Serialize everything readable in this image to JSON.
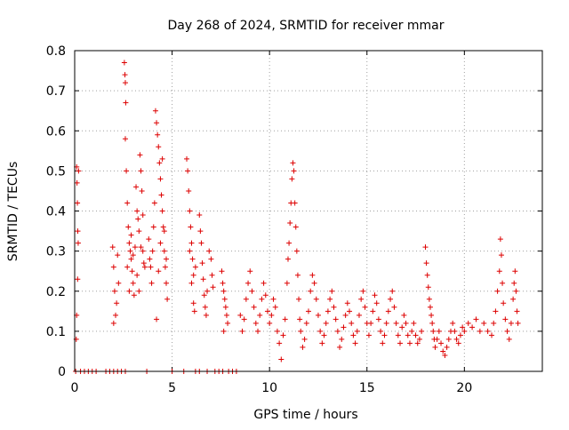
{
  "chart_data": {
    "type": "scatter",
    "title": "Day 268 of 2024, SRMTID for receiver mmar",
    "xlabel": "GPS time / hours",
    "ylabel": "SRMTID / TECUs",
    "xlim": [
      0,
      24
    ],
    "ylim": [
      0,
      0.8
    ],
    "xticks": [
      0,
      5,
      10,
      15,
      20
    ],
    "xtick_labels": [
      "0",
      "5",
      "10",
      "15",
      "20"
    ],
    "yticks": [
      0,
      0.1,
      0.2,
      0.3,
      0.4,
      0.5,
      0.6,
      0.7,
      0.8
    ],
    "ytick_labels": [
      "0",
      "0.1",
      "0.2",
      "0.3",
      "0.4",
      "0.5",
      "0.6",
      "0.7",
      "0.8"
    ],
    "grid": true,
    "marker": "plus",
    "color": "#dd0000",
    "series": [
      {
        "name": "SRMTID",
        "points": [
          [
            0.1,
            0.51
          ],
          [
            0.12,
            0.47
          ],
          [
            0.14,
            0.42
          ],
          [
            0.16,
            0.35
          ],
          [
            0.1,
            0.14
          ],
          [
            0.15,
            0.23
          ],
          [
            0.08,
            0.08
          ],
          [
            0.18,
            0.32
          ],
          [
            0.2,
            0.5
          ],
          [
            1.95,
            0.31
          ],
          [
            2.0,
            0.26
          ],
          [
            2.05,
            0.2
          ],
          [
            2.1,
            0.14
          ],
          [
            2.15,
            0.17
          ],
          [
            2.2,
            0.29
          ],
          [
            2.25,
            0.22
          ],
          [
            2.0,
            0.12
          ],
          [
            2.55,
            0.77
          ],
          [
            2.58,
            0.74
          ],
          [
            2.6,
            0.72
          ],
          [
            2.62,
            0.67
          ],
          [
            2.6,
            0.58
          ],
          [
            2.65,
            0.5
          ],
          [
            2.7,
            0.42
          ],
          [
            2.75,
            0.36
          ],
          [
            2.8,
            0.32
          ],
          [
            2.85,
            0.3
          ],
          [
            2.9,
            0.28
          ],
          [
            2.95,
            0.25
          ],
          [
            3.0,
            0.22
          ],
          [
            3.05,
            0.19
          ],
          [
            2.7,
            0.26
          ],
          [
            2.8,
            0.2
          ],
          [
            2.9,
            0.34
          ],
          [
            3.0,
            0.29
          ],
          [
            3.1,
            0.31
          ],
          [
            3.15,
            0.46
          ],
          [
            3.2,
            0.4
          ],
          [
            3.25,
            0.38
          ],
          [
            3.3,
            0.35
          ],
          [
            3.35,
            0.54
          ],
          [
            3.4,
            0.5
          ],
          [
            3.45,
            0.45
          ],
          [
            3.5,
            0.3
          ],
          [
            3.55,
            0.27
          ],
          [
            3.2,
            0.24
          ],
          [
            3.3,
            0.2
          ],
          [
            3.4,
            0.31
          ],
          [
            3.5,
            0.39
          ],
          [
            3.6,
            0.26
          ],
          [
            3.8,
            0.33
          ],
          [
            3.85,
            0.28
          ],
          [
            3.9,
            0.26
          ],
          [
            3.95,
            0.22
          ],
          [
            4.0,
            0.3
          ],
          [
            4.05,
            0.36
          ],
          [
            4.1,
            0.42
          ],
          [
            4.15,
            0.65
          ],
          [
            4.2,
            0.62
          ],
          [
            4.25,
            0.59
          ],
          [
            4.3,
            0.56
          ],
          [
            4.35,
            0.52
          ],
          [
            4.4,
            0.48
          ],
          [
            4.45,
            0.44
          ],
          [
            4.5,
            0.4
          ],
          [
            4.55,
            0.36
          ],
          [
            4.6,
            0.3
          ],
          [
            4.65,
            0.26
          ],
          [
            4.7,
            0.22
          ],
          [
            4.75,
            0.18
          ],
          [
            4.2,
            0.13
          ],
          [
            4.3,
            0.25
          ],
          [
            4.4,
            0.32
          ],
          [
            4.5,
            0.53
          ],
          [
            4.6,
            0.35
          ],
          [
            4.7,
            0.28
          ],
          [
            5.75,
            0.53
          ],
          [
            5.8,
            0.5
          ],
          [
            5.85,
            0.45
          ],
          [
            5.9,
            0.4
          ],
          [
            5.95,
            0.36
          ],
          [
            6.0,
            0.32
          ],
          [
            6.05,
            0.28
          ],
          [
            6.1,
            0.24
          ],
          [
            5.9,
            0.3
          ],
          [
            6.0,
            0.22
          ],
          [
            6.1,
            0.17
          ],
          [
            6.15,
            0.15
          ],
          [
            6.2,
            0.26
          ],
          [
            6.4,
            0.39
          ],
          [
            6.45,
            0.35
          ],
          [
            6.5,
            0.32
          ],
          [
            6.55,
            0.27
          ],
          [
            6.6,
            0.23
          ],
          [
            6.65,
            0.19
          ],
          [
            6.7,
            0.16
          ],
          [
            6.75,
            0.14
          ],
          [
            6.8,
            0.2
          ],
          [
            6.9,
            0.3
          ],
          [
            7.0,
            0.28
          ],
          [
            7.05,
            0.24
          ],
          [
            7.1,
            0.21
          ],
          [
            7.55,
            0.25
          ],
          [
            7.6,
            0.22
          ],
          [
            7.65,
            0.2
          ],
          [
            7.7,
            0.18
          ],
          [
            7.75,
            0.16
          ],
          [
            7.8,
            0.14
          ],
          [
            7.85,
            0.12
          ],
          [
            7.65,
            0.1
          ],
          [
            8.5,
            0.14
          ],
          [
            8.6,
            0.1
          ],
          [
            8.7,
            0.13
          ],
          [
            8.8,
            0.18
          ],
          [
            8.9,
            0.22
          ],
          [
            9.0,
            0.25
          ],
          [
            9.1,
            0.2
          ],
          [
            9.2,
            0.16
          ],
          [
            9.3,
            0.12
          ],
          [
            9.4,
            0.1
          ],
          [
            9.5,
            0.14
          ],
          [
            9.6,
            0.18
          ],
          [
            9.7,
            0.22
          ],
          [
            9.8,
            0.19
          ],
          [
            9.9,
            0.15
          ],
          [
            10.0,
            0.12
          ],
          [
            10.1,
            0.14
          ],
          [
            10.2,
            0.18
          ],
          [
            10.3,
            0.16
          ],
          [
            10.4,
            0.1
          ],
          [
            10.5,
            0.07
          ],
          [
            10.6,
            0.03
          ],
          [
            10.7,
            0.09
          ],
          [
            10.8,
            0.13
          ],
          [
            10.9,
            0.22
          ],
          [
            10.95,
            0.28
          ],
          [
            11.0,
            0.32
          ],
          [
            11.05,
            0.37
          ],
          [
            11.1,
            0.42
          ],
          [
            11.15,
            0.48
          ],
          [
            11.2,
            0.52
          ],
          [
            11.25,
            0.5
          ],
          [
            11.3,
            0.42
          ],
          [
            11.35,
            0.36
          ],
          [
            11.4,
            0.3
          ],
          [
            11.45,
            0.24
          ],
          [
            11.5,
            0.18
          ],
          [
            11.55,
            0.13
          ],
          [
            11.6,
            0.1
          ],
          [
            11.7,
            0.06
          ],
          [
            11.8,
            0.08
          ],
          [
            11.9,
            0.12
          ],
          [
            12.0,
            0.15
          ],
          [
            12.1,
            0.2
          ],
          [
            12.2,
            0.24
          ],
          [
            12.3,
            0.22
          ],
          [
            12.4,
            0.18
          ],
          [
            12.5,
            0.14
          ],
          [
            12.6,
            0.1
          ],
          [
            12.7,
            0.07
          ],
          [
            12.8,
            0.09
          ],
          [
            12.9,
            0.12
          ],
          [
            13.0,
            0.15
          ],
          [
            13.1,
            0.18
          ],
          [
            13.2,
            0.2
          ],
          [
            13.3,
            0.16
          ],
          [
            13.4,
            0.13
          ],
          [
            13.5,
            0.1
          ],
          [
            13.6,
            0.06
          ],
          [
            13.7,
            0.08
          ],
          [
            13.8,
            0.11
          ],
          [
            13.9,
            0.14
          ],
          [
            14.0,
            0.17
          ],
          [
            14.1,
            0.15
          ],
          [
            14.2,
            0.12
          ],
          [
            14.3,
            0.09
          ],
          [
            14.4,
            0.07
          ],
          [
            14.5,
            0.1
          ],
          [
            14.6,
            0.14
          ],
          [
            14.7,
            0.18
          ],
          [
            14.8,
            0.2
          ],
          [
            14.9,
            0.16
          ],
          [
            15.0,
            0.12
          ],
          [
            15.1,
            0.09
          ],
          [
            15.2,
            0.12
          ],
          [
            15.3,
            0.15
          ],
          [
            15.4,
            0.19
          ],
          [
            15.5,
            0.17
          ],
          [
            15.6,
            0.13
          ],
          [
            15.7,
            0.1
          ],
          [
            15.8,
            0.07
          ],
          [
            15.9,
            0.09
          ],
          [
            16.0,
            0.12
          ],
          [
            16.1,
            0.15
          ],
          [
            16.2,
            0.18
          ],
          [
            16.3,
            0.2
          ],
          [
            16.4,
            0.16
          ],
          [
            16.5,
            0.12
          ],
          [
            16.6,
            0.09
          ],
          [
            16.7,
            0.07
          ],
          [
            16.8,
            0.11
          ],
          [
            16.9,
            0.14
          ],
          [
            17.0,
            0.12
          ],
          [
            17.1,
            0.09
          ],
          [
            17.2,
            0.07
          ],
          [
            17.3,
            0.1
          ],
          [
            17.4,
            0.12
          ],
          [
            17.5,
            0.09
          ],
          [
            17.6,
            0.07
          ],
          [
            17.7,
            0.08
          ],
          [
            17.8,
            0.1
          ],
          [
            18.0,
            0.31
          ],
          [
            18.05,
            0.27
          ],
          [
            18.1,
            0.24
          ],
          [
            18.15,
            0.21
          ],
          [
            18.2,
            0.18
          ],
          [
            18.25,
            0.16
          ],
          [
            18.3,
            0.14
          ],
          [
            18.35,
            0.12
          ],
          [
            18.4,
            0.1
          ],
          [
            18.45,
            0.08
          ],
          [
            18.5,
            0.06
          ],
          [
            18.6,
            0.08
          ],
          [
            18.7,
            0.1
          ],
          [
            18.8,
            0.07
          ],
          [
            18.9,
            0.05
          ],
          [
            19.0,
            0.04
          ],
          [
            19.1,
            0.06
          ],
          [
            19.2,
            0.08
          ],
          [
            19.3,
            0.1
          ],
          [
            19.4,
            0.12
          ],
          [
            19.5,
            0.1
          ],
          [
            19.6,
            0.08
          ],
          [
            19.7,
            0.07
          ],
          [
            19.8,
            0.09
          ],
          [
            19.9,
            0.11
          ],
          [
            20.0,
            0.1
          ],
          [
            20.2,
            0.12
          ],
          [
            20.4,
            0.11
          ],
          [
            20.6,
            0.13
          ],
          [
            20.8,
            0.1
          ],
          [
            21.0,
            0.12
          ],
          [
            21.2,
            0.1
          ],
          [
            21.4,
            0.09
          ],
          [
            21.5,
            0.12
          ],
          [
            21.6,
            0.15
          ],
          [
            21.7,
            0.2
          ],
          [
            21.8,
            0.25
          ],
          [
            21.85,
            0.33
          ],
          [
            21.9,
            0.29
          ],
          [
            21.95,
            0.22
          ],
          [
            22.0,
            0.17
          ],
          [
            22.1,
            0.13
          ],
          [
            22.2,
            0.1
          ],
          [
            22.3,
            0.08
          ],
          [
            22.4,
            0.12
          ],
          [
            22.5,
            0.18
          ],
          [
            22.55,
            0.22
          ],
          [
            22.6,
            0.25
          ],
          [
            22.65,
            0.2
          ],
          [
            22.7,
            0.15
          ],
          [
            22.75,
            0.12
          ],
          [
            0.05,
            0.0
          ],
          [
            0.3,
            0.0
          ],
          [
            0.5,
            0.0
          ],
          [
            0.7,
            0.0
          ],
          [
            0.9,
            0.0
          ],
          [
            1.1,
            0.0
          ],
          [
            1.6,
            0.0
          ],
          [
            1.8,
            0.0
          ],
          [
            2.0,
            0.0
          ],
          [
            2.2,
            0.0
          ],
          [
            2.4,
            0.0
          ],
          [
            2.6,
            0.0
          ],
          [
            3.7,
            0.0
          ],
          [
            5.0,
            0.0
          ],
          [
            5.6,
            0.0
          ],
          [
            6.2,
            0.0
          ],
          [
            6.4,
            0.0
          ],
          [
            6.8,
            0.0
          ],
          [
            7.2,
            0.0
          ],
          [
            7.4,
            0.0
          ],
          [
            7.6,
            0.0
          ],
          [
            7.9,
            0.0
          ],
          [
            8.1,
            0.0
          ],
          [
            8.3,
            0.0
          ]
        ]
      }
    ]
  }
}
